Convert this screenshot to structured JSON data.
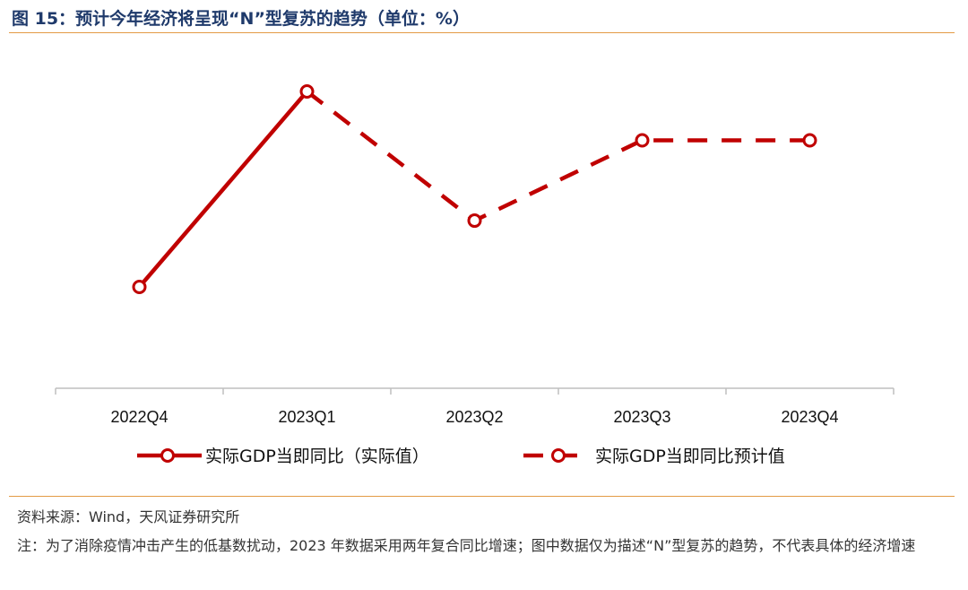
{
  "header": {
    "title": "图 15：预计今年经济将呈现“N”型复苏的趋势（单位：%）"
  },
  "footer": {
    "source": "资料来源：Wind，天风证券研究所",
    "note": "注：为了消除疫情冲击产生的低基数扰动，2023 年数据采用两年复合同比增速；图中数据仅为描述“N”型复苏的趋势，不代表具体的经济增速"
  },
  "colors": {
    "series": "#c00000",
    "rule": "#e39a45",
    "axis": "#bfbfbf"
  },
  "chart_data": {
    "type": "line",
    "title": "",
    "xlabel": "",
    "ylabel": "",
    "categories": [
      "2022Q4",
      "2023Q1",
      "2023Q2",
      "2023Q3",
      "2023Q4"
    ],
    "y_axis_shown": false,
    "grid": false,
    "legend_position": "bottom",
    "series": [
      {
        "name": "实际GDP当即同比（实际值）",
        "style": "solid",
        "values": [
          2.6,
          8.2,
          null,
          null,
          null
        ]
      },
      {
        "name": "实际GDP当即同比预计值",
        "style": "dashed",
        "values": [
          null,
          8.2,
          4.5,
          6.8,
          6.8
        ]
      }
    ]
  }
}
